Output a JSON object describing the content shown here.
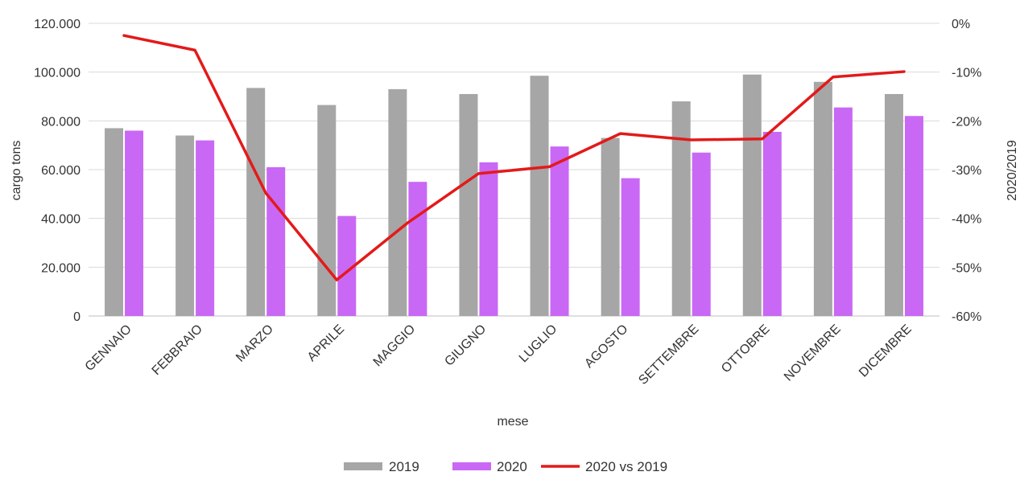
{
  "chart_data": {
    "type": "bar",
    "title": "",
    "xlabel": "mese",
    "ylabel": "cargo tons",
    "y2label": "2020/2019",
    "ylim": [
      0,
      120000
    ],
    "y2lim": [
      -60,
      0
    ],
    "yticks": [
      "0",
      "20.000",
      "40.000",
      "60.000",
      "80.000",
      "100.000",
      "120.000"
    ],
    "y2ticks": [
      "-60%",
      "-50%",
      "-40%",
      "-30%",
      "-20%",
      "-10%",
      "0%"
    ],
    "categories": [
      "GENNAIO",
      "FEBBRAIO",
      "MARZO",
      "APRILE",
      "MAGGIO",
      "GIUGNO",
      "LUGLIO",
      "AGOSTO",
      "SETTEMBRE",
      "OTTOBRE",
      "NOVEMBRE",
      "DICEMBRE"
    ],
    "series": [
      {
        "name": "2019",
        "kind": "bar",
        "axis": "left",
        "color": "#a6a6a6",
        "values": [
          77000,
          74000,
          93500,
          86500,
          93000,
          91000,
          98500,
          73000,
          88000,
          99000,
          96000,
          91000
        ]
      },
      {
        "name": "2020",
        "kind": "bar",
        "axis": "right_unused",
        "color": "#c968f5",
        "values": [
          76000,
          72000,
          61000,
          41000,
          55000,
          63000,
          69500,
          56500,
          67000,
          75500,
          85500,
          82000
        ]
      },
      {
        "name": "2020 vs 2019",
        "kind": "line",
        "axis": "right",
        "color": "#e31a1a",
        "values": [
          -2.5,
          -5.5,
          -34.8,
          -52.6,
          -40.9,
          -30.8,
          -29.4,
          -22.6,
          -23.9,
          -23.7,
          -11.0,
          -9.9
        ]
      }
    ],
    "legend_position": "bottom",
    "grid": true
  }
}
